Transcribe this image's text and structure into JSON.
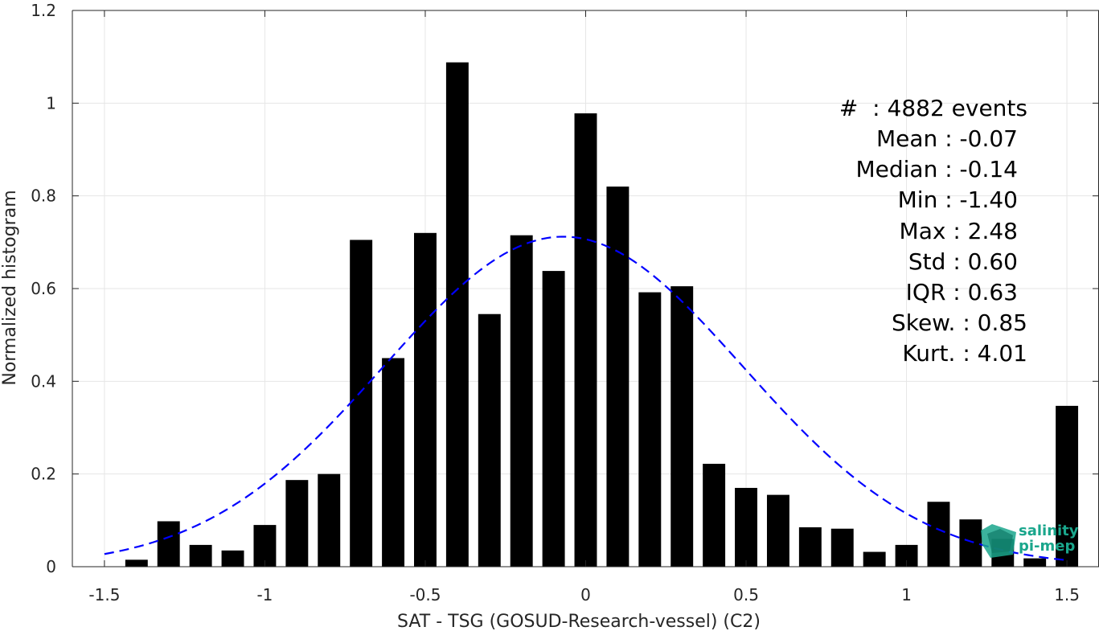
{
  "chart_data": {
    "type": "bar",
    "xlabel": "SAT - TSG (GOSUD-Research-vessel) (C2)",
    "ylabel": "Normalized histogram",
    "xlim": [
      -1.6,
      1.6
    ],
    "ylim": [
      0,
      1.2
    ],
    "xticks": [
      -1.5,
      -1,
      -0.5,
      0,
      0.5,
      1,
      1.5
    ],
    "xtick_labels": [
      "-1.5",
      "-1",
      "-0.5",
      "0",
      "0.5",
      "1",
      "1.5"
    ],
    "yticks": [
      0,
      0.2,
      0.4,
      0.6,
      0.8,
      1,
      1.2
    ],
    "ytick_labels": [
      "0",
      "0.2",
      "0.4",
      "0.6",
      "0.8",
      "1",
      "1.2"
    ],
    "grid": true,
    "bar_color": "#000000",
    "bins": {
      "centers": [
        -1.4,
        -1.3,
        -1.2,
        -1.1,
        -1.0,
        -0.9,
        -0.8,
        -0.7,
        -0.6,
        -0.5,
        -0.4,
        -0.3,
        -0.2,
        -0.1,
        0.0,
        0.1,
        0.2,
        0.3,
        0.4,
        0.5,
        0.6,
        0.7,
        0.8,
        0.9,
        1.0,
        1.1,
        1.2,
        1.3,
        1.4,
        1.5
      ],
      "values": [
        0.015,
        0.098,
        0.047,
        0.035,
        0.09,
        0.187,
        0.2,
        0.705,
        0.45,
        0.72,
        1.088,
        0.545,
        0.715,
        0.638,
        0.978,
        0.82,
        0.592,
        0.605,
        0.222,
        0.17,
        0.155,
        0.085,
        0.082,
        0.032,
        0.047,
        0.14,
        0.102,
        0.06,
        0.018,
        0.347
      ]
    },
    "fit": {
      "type": "normal",
      "style": "dashed",
      "color": "#0000ff",
      "mean": -0.07,
      "std": 0.56,
      "x_range": [
        -1.5,
        1.5
      ],
      "peak": 0.712
    },
    "stats": {
      "lines": [
        "#  : 4882 events",
        "Mean : -0.07",
        "Median : -0.14",
        "Min : -1.40",
        "Max : 2.48",
        "Std : 0.60",
        "IQR : 0.63",
        "Skew. : 0.85",
        "Kurt. : 4.01"
      ]
    }
  },
  "logo": {
    "line1": "salinity",
    "line2": "pi-mep",
    "color": "#1aa68c"
  }
}
